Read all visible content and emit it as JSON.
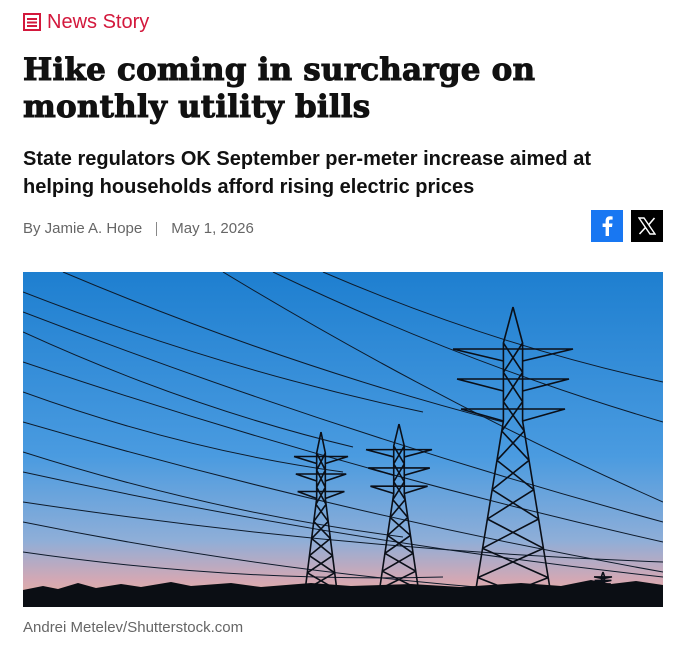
{
  "section": {
    "label": "News Story"
  },
  "headline": "Hike coming in surcharge on monthly utility bills",
  "subheadline": "State regulators OK September per-meter increase aimed at helping households afford rising electric prices",
  "byline": {
    "author": "By Jamie A. Hope",
    "date": "May 1, 2026"
  },
  "image": {
    "credit": "Andrei Metelev/Shutterstock.com"
  }
}
